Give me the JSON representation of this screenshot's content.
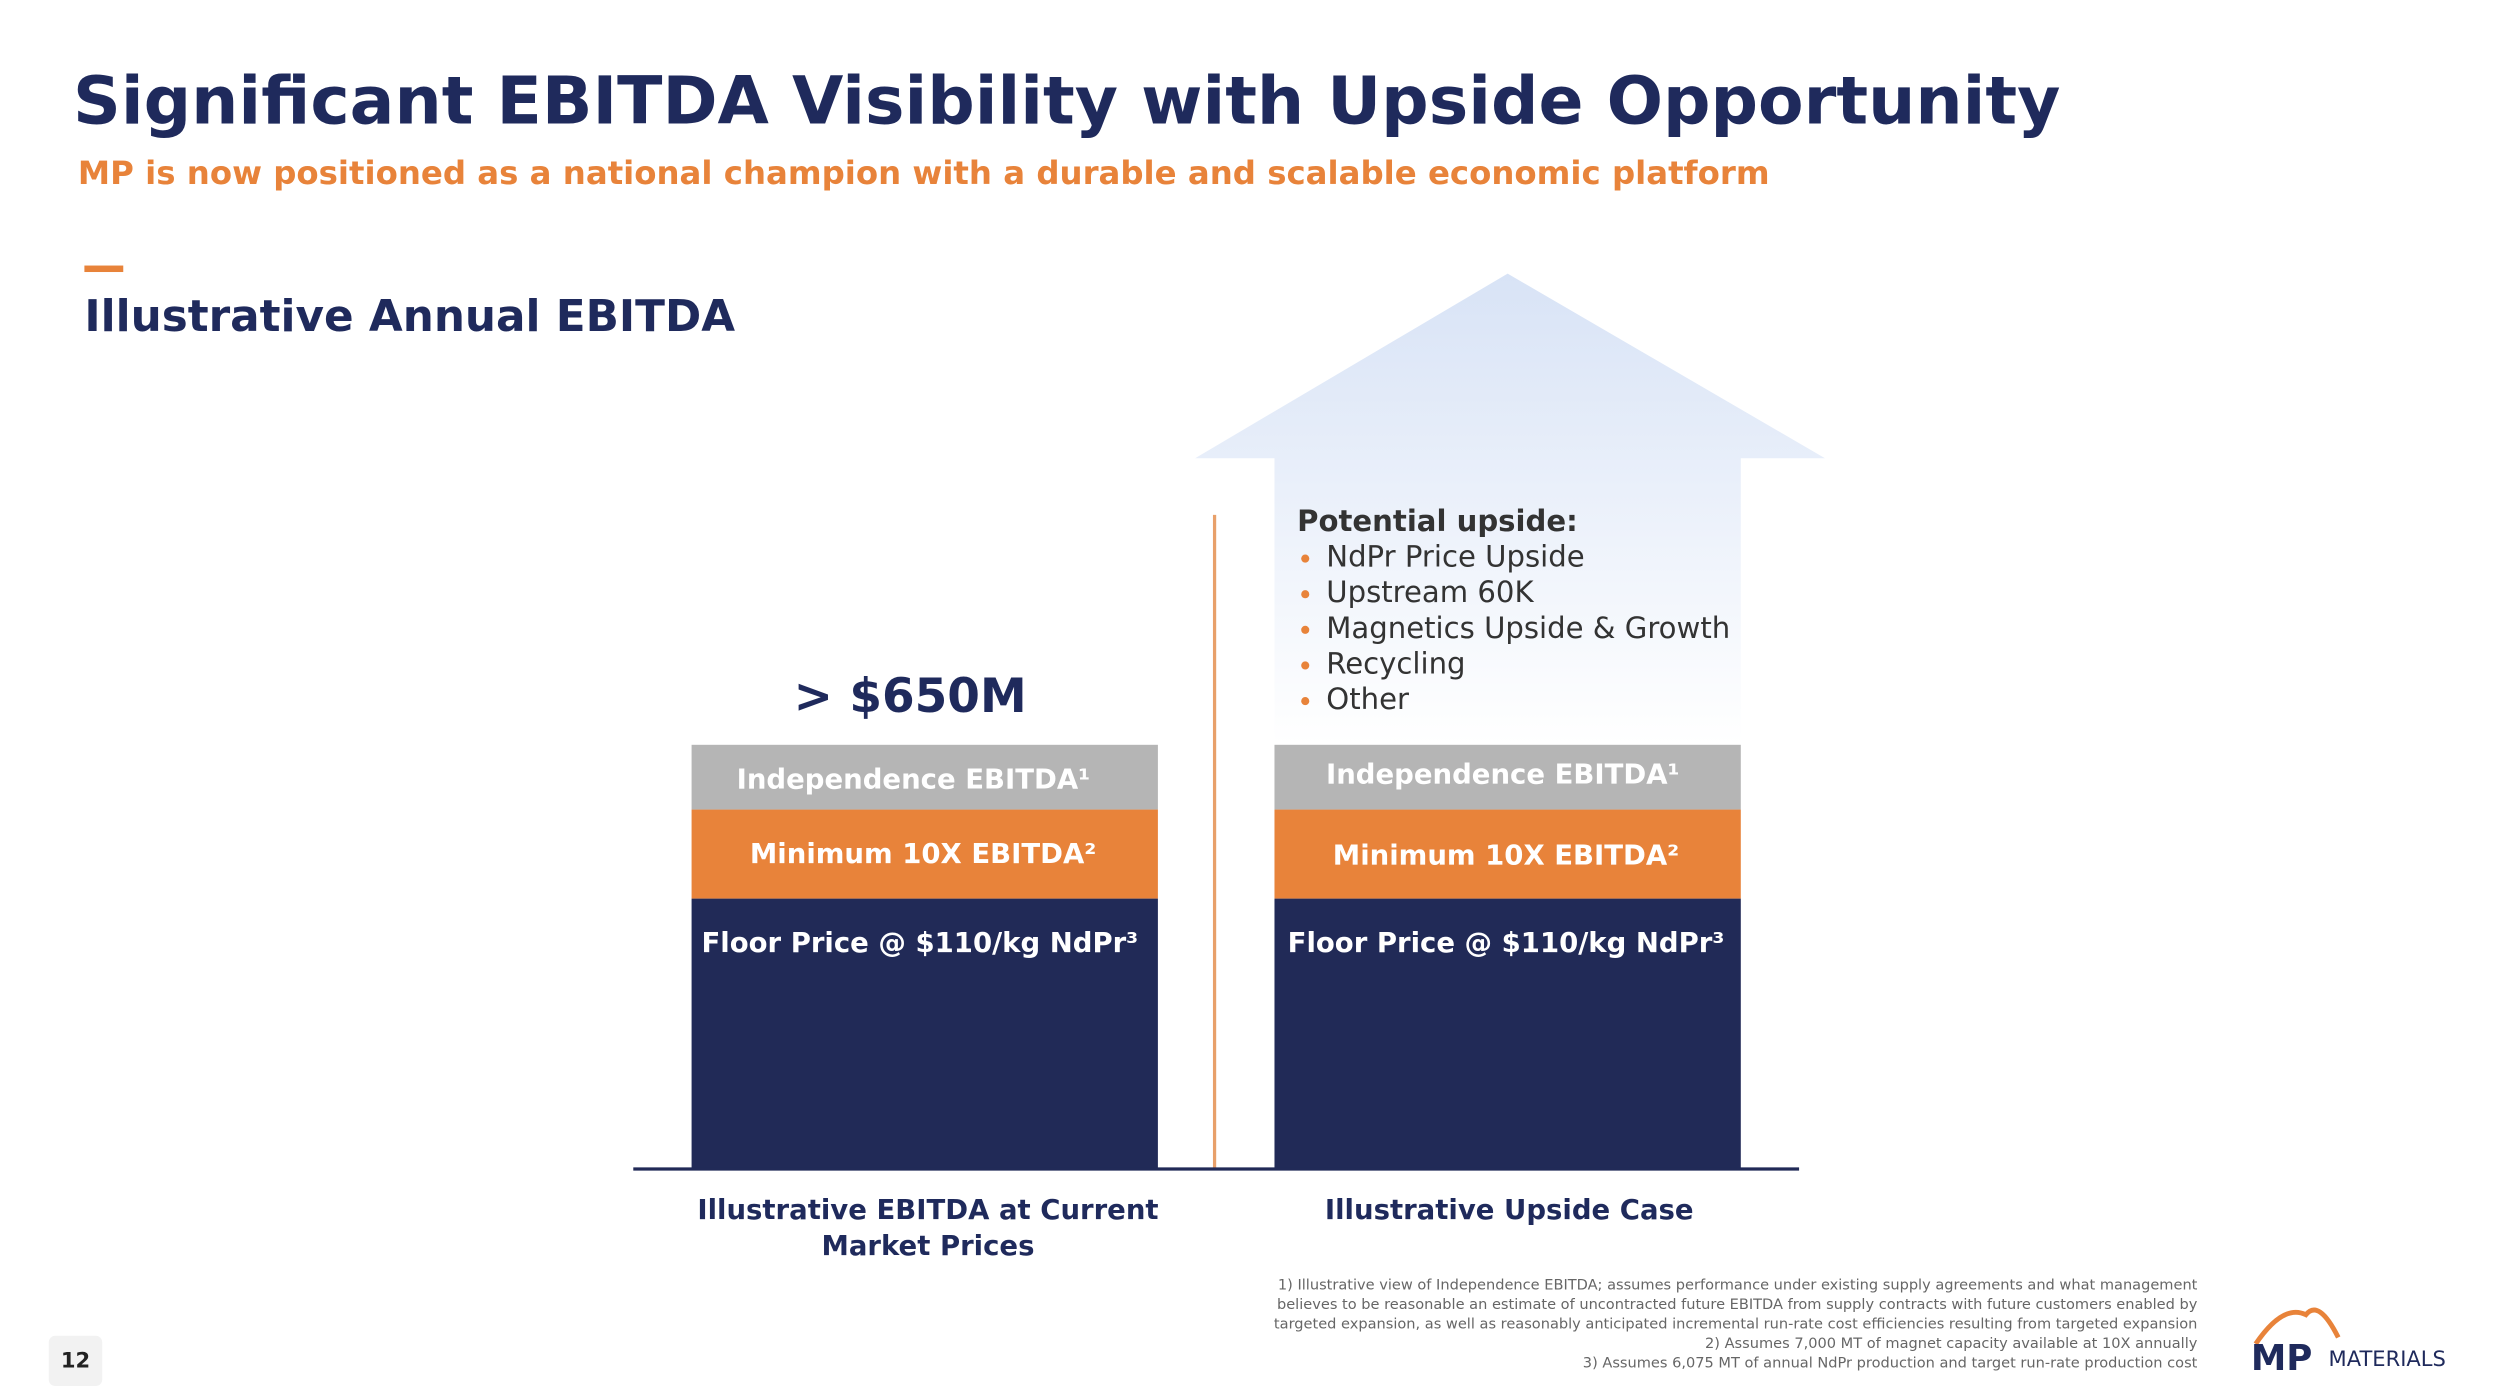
{
  "header": {
    "title": "Significant EBITDA Visibility with Upside Opportunity",
    "subtitle": "MP is now positioned as a national champion with a durable and scalable economic platform"
  },
  "section": {
    "title": "Illustrative Annual EBITDA"
  },
  "columns": [
    {
      "callout": "> $650M",
      "layers": [
        "Independence EBITDA¹",
        "Minimum 10X EBITDA²",
        "Floor Price @ $110/kg NdPr³"
      ],
      "label": [
        "Illustrative EBITDA at Current",
        "Market Prices"
      ]
    },
    {
      "layers": [
        "Independence EBITDA¹",
        "Minimum 10X EBITDA²",
        "Floor Price @ $110/kg NdPr³"
      ],
      "label": [
        "Illustrative Upside Case"
      ]
    }
  ],
  "upside": {
    "heading": "Potential upside:",
    "items": [
      "NdPr Price Upside",
      "Upstream 60K",
      "Magnetics Upside & Growth",
      "Recycling",
      "Other"
    ]
  },
  "footnotes": [
    "1) Illustrative view of  Independence EBITDA; assumes performance under existing supply agreements and what management",
    "believes to be reasonable an estimate of uncontracted future EBITDA from supply contracts with future customers enabled by",
    "targeted expansion, as well as reasonably anticipated incremental run-rate cost efficiencies resulting from targeted expansion",
    "2) Assumes 7,000 MT of magnet capacity available at 10X annually",
    "3) Assumes 6,075 MT of annual NdPr production and target run-rate production cost"
  ],
  "page_number": "12",
  "logo": {
    "mark": "MP",
    "word": "MATERIALS"
  }
}
